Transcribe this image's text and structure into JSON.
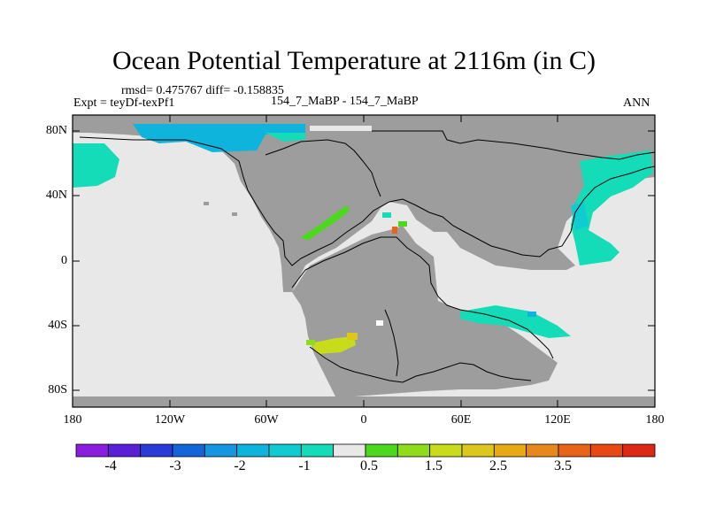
{
  "title": "Ocean Potential Temperature at 2116m (in C)",
  "stats_line": "rmsd= 0.475767 diff= -0.158835",
  "experiment": "Expt = teyDf-texPf1",
  "comparison": "154_7_MaBP - 154_7_MaBP",
  "season": "ANN",
  "y_ticks": [
    "80N",
    "40N",
    "0",
    "40S",
    "80S"
  ],
  "x_ticks": [
    "180",
    "120W",
    "60W",
    "0",
    "60E",
    "120E",
    "180"
  ],
  "colorbar": {
    "colors": [
      "#8a1ee0",
      "#5a20d8",
      "#2a3ad8",
      "#1466d8",
      "#1496e0",
      "#0fb4dc",
      "#10ccd0",
      "#14dcb8",
      "#e8e8e8",
      "#4cd81c",
      "#90dc1c",
      "#c8dc1c",
      "#dcc81c",
      "#e8aa14",
      "#e8881c",
      "#e86418",
      "#e84814",
      "#dc2814"
    ],
    "labels": [
      "-4",
      "-3",
      "-2",
      "-1",
      "0.5",
      "1.5",
      "2.5",
      "3.5"
    ]
  },
  "chart_data": {
    "type": "heatmap",
    "title": "Ocean Potential Temperature at 2116m (in C)",
    "x_range": [
      -180,
      180
    ],
    "y_range": [
      -90,
      90
    ],
    "colorbar_levels": [
      -4.5,
      -4,
      -3.5,
      -3,
      -2.5,
      -2,
      -1.5,
      -1,
      -0.5,
      0.5,
      1,
      1.5,
      2,
      2.5,
      3,
      3.5,
      4,
      4.5
    ]
  }
}
